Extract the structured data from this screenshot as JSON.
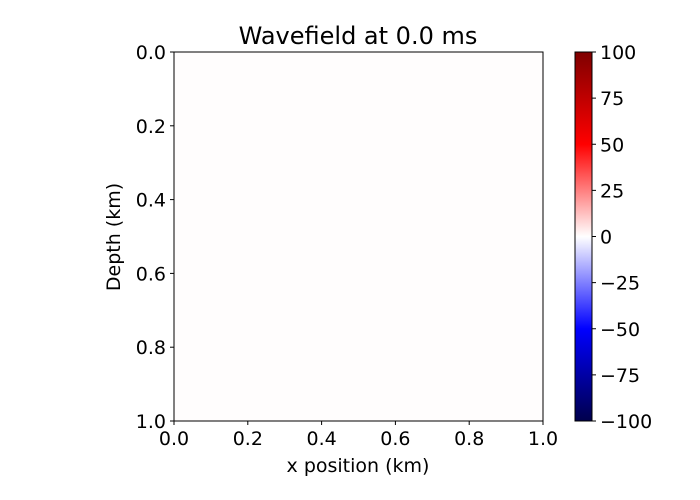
{
  "chart_data": {
    "type": "heatmap",
    "title": "Wavefield at 0.0 ms",
    "xlabel": "x position (km)",
    "ylabel": "Depth (km)",
    "xlim": [
      0.0,
      1.0
    ],
    "ylim": [
      1.0,
      0.0
    ],
    "xticks": [
      "0.0",
      "0.2",
      "0.4",
      "0.6",
      "0.8",
      "1.0"
    ],
    "yticks": [
      "0.0",
      "0.2",
      "0.4",
      "0.6",
      "0.8",
      "1.0"
    ],
    "z": [
      [
        0
      ]
    ],
    "colormap": "seismic",
    "colorbar": {
      "range": [
        -100,
        100
      ],
      "ticks": [
        100,
        75,
        50,
        25,
        0,
        -25,
        -50,
        -75,
        -100
      ],
      "tick_labels": [
        "100",
        "75",
        "50",
        "25",
        "0",
        "−25",
        "−50",
        "−75",
        "−100"
      ],
      "colors": [
        "#00004c",
        "#0000ff",
        "#ffffff",
        "#ff0000",
        "#7f0000"
      ]
    },
    "grid": false
  }
}
